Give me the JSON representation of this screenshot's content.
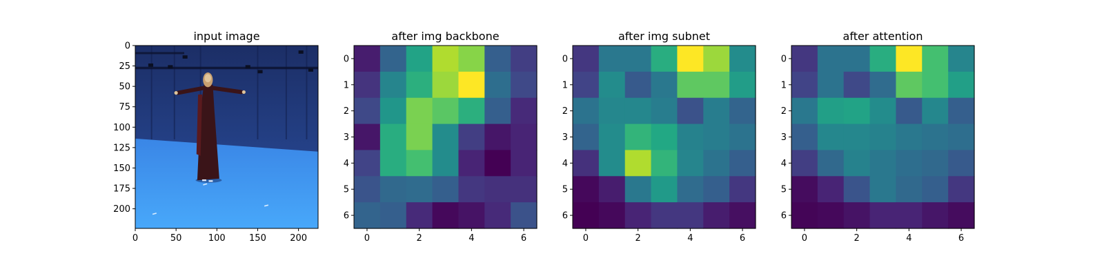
{
  "chart_data": [
    {
      "type": "image",
      "title": "input image",
      "xticks": [
        "0",
        "50",
        "100",
        "150",
        "200"
      ],
      "xtick_values": [
        0,
        50,
        100,
        150,
        200
      ],
      "yticks": [
        "0",
        "25",
        "50",
        "75",
        "100",
        "125",
        "150",
        "175",
        "200"
      ],
      "ytick_values": [
        0,
        25,
        50,
        75,
        100,
        125,
        150,
        175,
        200
      ],
      "xlim": [
        0,
        224
      ],
      "ylim": [
        0,
        224
      ],
      "colors": {
        "backdrop_top": "#1c2e66",
        "backdrop_bottom": "#2a4fa0",
        "floor_far": "#3a86e6",
        "floor_near": "#48a8fa",
        "dress": "#3a1418",
        "skin": "#e0c49a",
        "hair": "#c8a070"
      }
    },
    {
      "type": "heatmap",
      "title": "after img backbone",
      "colormap": "viridis",
      "xticks": [
        "0",
        "2",
        "4",
        "6"
      ],
      "xtick_values": [
        0,
        2,
        4,
        6
      ],
      "yticks": [
        "0",
        "1",
        "2",
        "3",
        "4",
        "5",
        "6"
      ],
      "ytick_values": [
        0,
        1,
        2,
        3,
        4,
        5,
        6
      ],
      "values": [
        [
          0.08,
          0.32,
          0.58,
          0.88,
          0.82,
          0.3,
          0.18
        ],
        [
          0.15,
          0.45,
          0.63,
          0.85,
          1.0,
          0.36,
          0.22
        ],
        [
          0.22,
          0.52,
          0.8,
          0.74,
          0.63,
          0.3,
          0.12
        ],
        [
          0.06,
          0.62,
          0.8,
          0.48,
          0.18,
          0.06,
          0.1
        ],
        [
          0.2,
          0.62,
          0.7,
          0.48,
          0.1,
          0.0,
          0.1
        ],
        [
          0.26,
          0.34,
          0.35,
          0.3,
          0.16,
          0.14,
          0.14
        ],
        [
          0.32,
          0.3,
          0.12,
          0.02,
          0.05,
          0.12,
          0.25
        ]
      ]
    },
    {
      "type": "heatmap",
      "title": "after img subnet",
      "colormap": "viridis",
      "xticks": [
        "0",
        "2",
        "4",
        "6"
      ],
      "xtick_values": [
        0,
        2,
        4,
        6
      ],
      "yticks": [
        "0",
        "1",
        "2",
        "3",
        "4",
        "5",
        "6"
      ],
      "ytick_values": [
        0,
        1,
        2,
        3,
        4,
        5,
        6
      ],
      "values": [
        [
          0.16,
          0.4,
          0.4,
          0.62,
          1.0,
          0.85,
          0.48
        ],
        [
          0.2,
          0.48,
          0.28,
          0.4,
          0.75,
          0.75,
          0.55
        ],
        [
          0.38,
          0.46,
          0.46,
          0.42,
          0.25,
          0.42,
          0.32
        ],
        [
          0.32,
          0.48,
          0.65,
          0.6,
          0.44,
          0.42,
          0.38
        ],
        [
          0.14,
          0.48,
          0.88,
          0.65,
          0.45,
          0.38,
          0.3
        ],
        [
          0.02,
          0.08,
          0.4,
          0.54,
          0.35,
          0.3,
          0.16
        ],
        [
          0.0,
          0.02,
          0.1,
          0.16,
          0.16,
          0.08,
          0.04
        ]
      ]
    },
    {
      "type": "heatmap",
      "title": "after attention",
      "colormap": "viridis",
      "xticks": [
        "0",
        "2",
        "4",
        "6"
      ],
      "xtick_values": [
        0,
        2,
        4,
        6
      ],
      "yticks": [
        "0",
        "1",
        "2",
        "3",
        "4",
        "5",
        "6"
      ],
      "ytick_values": [
        0,
        1,
        2,
        3,
        4,
        5,
        6
      ],
      "values": [
        [
          0.16,
          0.38,
          0.38,
          0.62,
          1.0,
          0.7,
          0.45
        ],
        [
          0.2,
          0.38,
          0.22,
          0.35,
          0.75,
          0.7,
          0.56
        ],
        [
          0.4,
          0.56,
          0.58,
          0.48,
          0.28,
          0.46,
          0.3
        ],
        [
          0.3,
          0.46,
          0.46,
          0.44,
          0.4,
          0.38,
          0.36
        ],
        [
          0.18,
          0.34,
          0.44,
          0.4,
          0.36,
          0.34,
          0.28
        ],
        [
          0.03,
          0.1,
          0.26,
          0.4,
          0.34,
          0.3,
          0.16
        ],
        [
          0.01,
          0.02,
          0.05,
          0.1,
          0.1,
          0.06,
          0.03
        ]
      ]
    }
  ]
}
